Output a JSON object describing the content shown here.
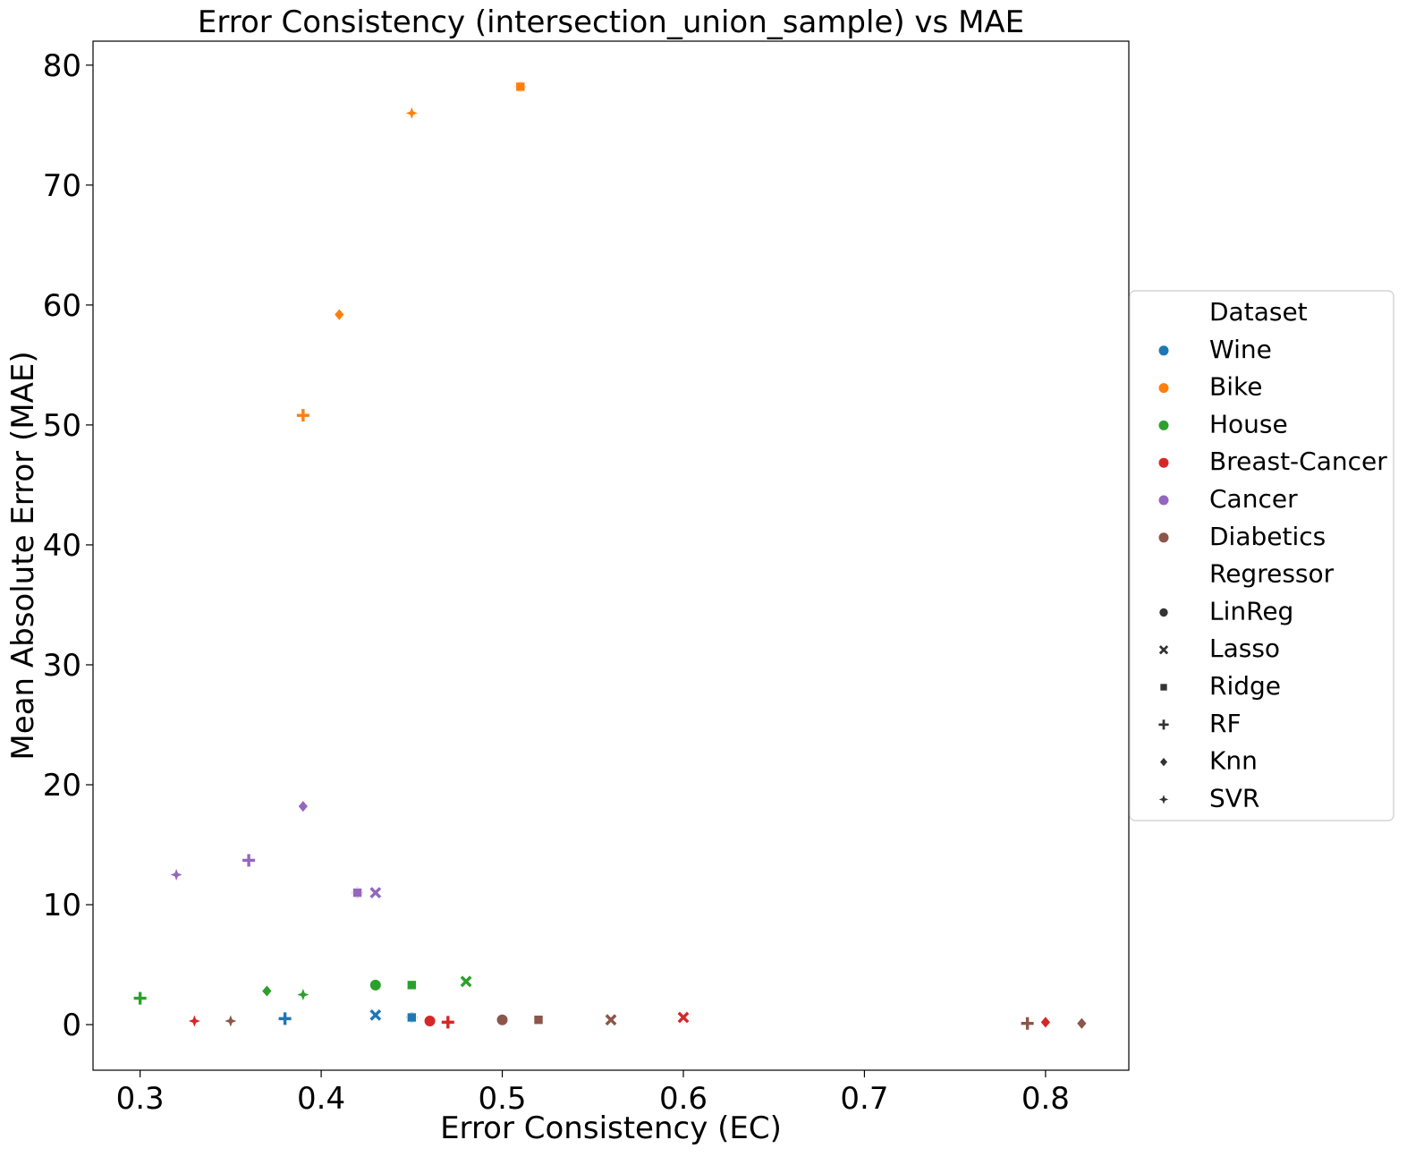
{
  "chart_data": {
    "type": "scatter",
    "title": "Error Consistency (intersection_union_sample) vs MAE",
    "xlabel": "Error Consistency (EC)",
    "ylabel": "Mean Absolute Error (MAE)",
    "xlim": [
      0.274,
      0.846
    ],
    "ylim": [
      -3.8,
      82.0
    ],
    "xticks": [
      0.3,
      0.4,
      0.5,
      0.6,
      0.7,
      0.8
    ],
    "xtick_labels": [
      "0.3",
      "0.4",
      "0.5",
      "0.6",
      "0.7",
      "0.8"
    ],
    "yticks": [
      0,
      10,
      20,
      30,
      40,
      50,
      60,
      70,
      80
    ],
    "ytick_labels": [
      "0",
      "10",
      "20",
      "30",
      "40",
      "50",
      "60",
      "70",
      "80"
    ],
    "grid": false,
    "legend_position": "outside-right",
    "legend": {
      "hue_title": "Dataset",
      "style_title": "Regressor",
      "datasets": [
        {
          "name": "Wine",
          "color": "#1f77b4"
        },
        {
          "name": "Bike",
          "color": "#ff7f0e"
        },
        {
          "name": "House",
          "color": "#2ca02c"
        },
        {
          "name": "Breast-Cancer",
          "color": "#d62728"
        },
        {
          "name": "Cancer",
          "color": "#9467bd"
        },
        {
          "name": "Diabetics",
          "color": "#8c564b"
        }
      ],
      "regressors": [
        {
          "name": "LinReg",
          "marker": "circle"
        },
        {
          "name": "Lasso",
          "marker": "x"
        },
        {
          "name": "Ridge",
          "marker": "square"
        },
        {
          "name": "RF",
          "marker": "plus"
        },
        {
          "name": "Knn",
          "marker": "diamond"
        },
        {
          "name": "SVR",
          "marker": "star"
        }
      ]
    },
    "points": [
      {
        "dataset": "Wine",
        "regressor": "LinReg",
        "x": 0.45,
        "y": 0.6
      },
      {
        "dataset": "Wine",
        "regressor": "Lasso",
        "x": 0.43,
        "y": 0.8
      },
      {
        "dataset": "Wine",
        "regressor": "Ridge",
        "x": 0.45,
        "y": 0.6
      },
      {
        "dataset": "Wine",
        "regressor": "RF",
        "x": 0.38,
        "y": 0.5
      },
      {
        "dataset": "Bike",
        "regressor": "LinReg",
        "x": 0.51,
        "y": 78.2
      },
      {
        "dataset": "Bike",
        "regressor": "Ridge",
        "x": 0.51,
        "y": 78.2
      },
      {
        "dataset": "Bike",
        "regressor": "RF",
        "x": 0.39,
        "y": 50.8
      },
      {
        "dataset": "Bike",
        "regressor": "Knn",
        "x": 0.41,
        "y": 59.2
      },
      {
        "dataset": "Bike",
        "regressor": "SVR",
        "x": 0.45,
        "y": 76.0
      },
      {
        "dataset": "House",
        "regressor": "LinReg",
        "x": 0.43,
        "y": 3.3
      },
      {
        "dataset": "House",
        "regressor": "Lasso",
        "x": 0.48,
        "y": 3.6
      },
      {
        "dataset": "House",
        "regressor": "Ridge",
        "x": 0.45,
        "y": 3.3
      },
      {
        "dataset": "House",
        "regressor": "RF",
        "x": 0.3,
        "y": 2.2
      },
      {
        "dataset": "House",
        "regressor": "Knn",
        "x": 0.37,
        "y": 2.8
      },
      {
        "dataset": "House",
        "regressor": "SVR",
        "x": 0.39,
        "y": 2.5
      },
      {
        "dataset": "Breast-Cancer",
        "regressor": "LinReg",
        "x": 0.46,
        "y": 0.3
      },
      {
        "dataset": "Breast-Cancer",
        "regressor": "Lasso",
        "x": 0.6,
        "y": 0.6
      },
      {
        "dataset": "Breast-Cancer",
        "regressor": "RF",
        "x": 0.47,
        "y": 0.2
      },
      {
        "dataset": "Breast-Cancer",
        "regressor": "Knn",
        "x": 0.8,
        "y": 0.2
      },
      {
        "dataset": "Breast-Cancer",
        "regressor": "SVR",
        "x": 0.33,
        "y": 0.3
      },
      {
        "dataset": "Cancer",
        "regressor": "LinReg",
        "x": 0.42,
        "y": 11.0
      },
      {
        "dataset": "Cancer",
        "regressor": "Lasso",
        "x": 0.43,
        "y": 11.0
      },
      {
        "dataset": "Cancer",
        "regressor": "Ridge",
        "x": 0.42,
        "y": 11.0
      },
      {
        "dataset": "Cancer",
        "regressor": "RF",
        "x": 0.36,
        "y": 13.7
      },
      {
        "dataset": "Cancer",
        "regressor": "Knn",
        "x": 0.39,
        "y": 18.2
      },
      {
        "dataset": "Cancer",
        "regressor": "SVR",
        "x": 0.32,
        "y": 12.5
      },
      {
        "dataset": "Diabetics",
        "regressor": "LinReg",
        "x": 0.5,
        "y": 0.4
      },
      {
        "dataset": "Diabetics",
        "regressor": "Lasso",
        "x": 0.56,
        "y": 0.4
      },
      {
        "dataset": "Diabetics",
        "regressor": "Ridge",
        "x": 0.52,
        "y": 0.4
      },
      {
        "dataset": "Diabetics",
        "regressor": "RF",
        "x": 0.79,
        "y": 0.1
      },
      {
        "dataset": "Diabetics",
        "regressor": "Knn",
        "x": 0.82,
        "y": 0.1
      },
      {
        "dataset": "Diabetics",
        "regressor": "SVR",
        "x": 0.35,
        "y": 0.3
      }
    ]
  }
}
